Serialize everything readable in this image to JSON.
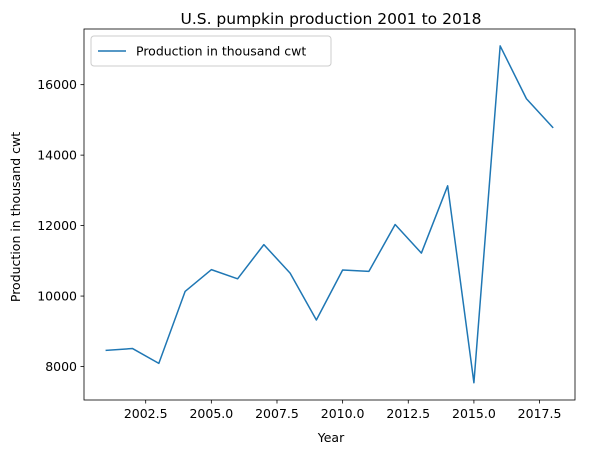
{
  "chart_data": {
    "type": "line",
    "title": "U.S. pumpkin production 2001 to 2018",
    "xlabel": "Year",
    "ylabel": "Production in thousand cwt",
    "xlim": [
      2000.15,
      2018.85
    ],
    "ylim": [
      7050,
      17580
    ],
    "x_ticks": [
      2002.5,
      2005.0,
      2007.5,
      2010.0,
      2012.5,
      2015.0,
      2017.5
    ],
    "x_tick_labels": [
      "2002.5",
      "2005.0",
      "2007.5",
      "2010.0",
      "2012.5",
      "2015.0",
      "2017.5"
    ],
    "y_ticks": [
      8000,
      10000,
      12000,
      14000,
      16000
    ],
    "y_tick_labels": [
      "8000",
      "10000",
      "12000",
      "14000",
      "16000"
    ],
    "grid": false,
    "legend_position": "top-left",
    "series": [
      {
        "name": "Production in thousand cwt",
        "color": "#1f77b4",
        "x": [
          2001,
          2002,
          2003,
          2004,
          2005,
          2006,
          2007,
          2008,
          2009,
          2010,
          2011,
          2012,
          2013,
          2014,
          2015,
          2016,
          2017,
          2018
        ],
        "y": [
          8460,
          8510,
          8090,
          10130,
          10750,
          10490,
          11460,
          10650,
          9320,
          10740,
          10700,
          12030,
          11220,
          13130,
          7540,
          17100,
          15600,
          14790
        ]
      }
    ]
  }
}
